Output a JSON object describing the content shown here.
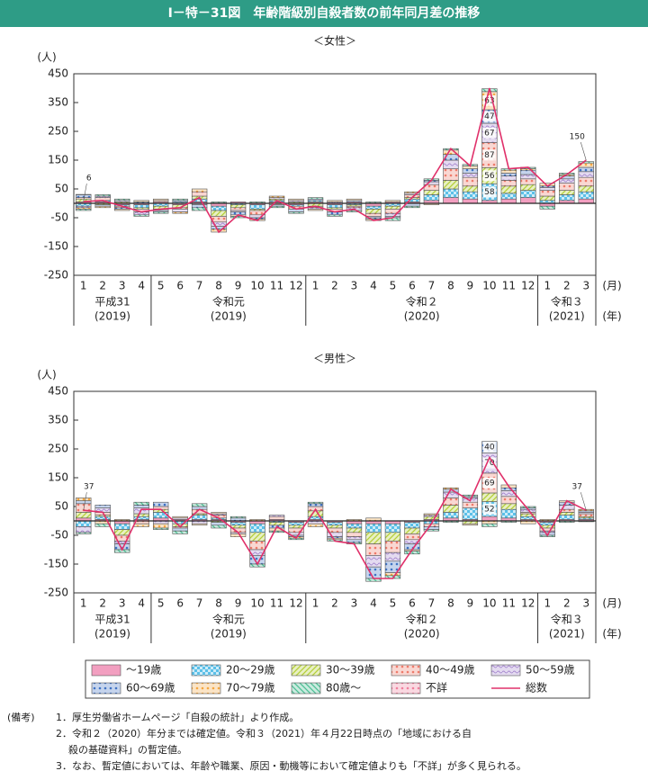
{
  "header": {
    "title": "Ⅰ－特－31図　年齢階級別自殺者数の前年同月差の推移"
  },
  "chart_data": [
    {
      "type": "bar",
      "title": "＜女性＞",
      "ylabel": "(人)",
      "x_unit": "(月)",
      "group_unit": "(年)",
      "categories": [
        "1",
        "2",
        "3",
        "4",
        "5",
        "6",
        "7",
        "8",
        "9",
        "10",
        "11",
        "12",
        "1",
        "2",
        "3",
        "4",
        "5",
        "6",
        "7",
        "8",
        "9",
        "10",
        "11",
        "12",
        "1",
        "2",
        "3"
      ],
      "groups": [
        {
          "name": "平成31",
          "year": "(2019)",
          "span": 4
        },
        {
          "name": "令和元",
          "year": "(2019)",
          "span": 8
        },
        {
          "name": "令和２",
          "year": "(2020)",
          "span": 12
        },
        {
          "name": "令和３",
          "year": "(2021)",
          "span": 3
        }
      ],
      "ylim": [
        -250,
        450
      ],
      "yticks": [
        -250,
        -150,
        -50,
        50,
        150,
        250,
        350,
        450
      ],
      "series": [
        {
          "name": "～19歳",
          "color": "#f29fc0",
          "pattern": "solid",
          "values": [
            5,
            5,
            -5,
            -5,
            5,
            -5,
            5,
            -10,
            5,
            -5,
            5,
            -5,
            5,
            -5,
            5,
            -10,
            5,
            5,
            10,
            20,
            15,
            10,
            15,
            20,
            -10,
            10,
            15
          ]
        },
        {
          "name": "20～29歳",
          "color": "#5cc0e8",
          "pattern": "checker",
          "values": [
            -10,
            5,
            -5,
            -10,
            -10,
            5,
            10,
            -15,
            -5,
            -15,
            5,
            -5,
            5,
            -10,
            -5,
            -10,
            -10,
            10,
            20,
            30,
            25,
            58,
            20,
            25,
            10,
            20,
            25
          ],
          "label_points": [
            21
          ]
        },
        {
          "name": "30～39歳",
          "color": "#b5cf3a",
          "pattern": "diag",
          "values": [
            10,
            -5,
            5,
            -5,
            -10,
            -10,
            10,
            -20,
            -10,
            -5,
            5,
            5,
            -10,
            -5,
            -5,
            -15,
            -10,
            5,
            15,
            30,
            20,
            56,
            25,
            20,
            15,
            15,
            20
          ],
          "label_points": [
            21
          ]
        },
        {
          "name": "40～49歳",
          "color": "#ee7a6a",
          "pattern": "dots",
          "values": [
            5,
            10,
            -5,
            -10,
            5,
            -5,
            15,
            -20,
            -10,
            -15,
            -5,
            -10,
            -5,
            -10,
            -5,
            -10,
            -15,
            10,
            20,
            40,
            30,
            87,
            20,
            20,
            20,
            25,
            30
          ],
          "label_points": [
            21
          ]
        },
        {
          "name": "50～59歳",
          "color": "#a88ad0",
          "pattern": "wave",
          "values": [
            -5,
            5,
            5,
            -10,
            -5,
            -10,
            -5,
            -15,
            -5,
            -10,
            5,
            5,
            -5,
            5,
            -10,
            -5,
            -10,
            5,
            10,
            30,
            15,
            67,
            15,
            15,
            10,
            15,
            20
          ],
          "label_points": [
            21
          ]
        },
        {
          "name": "60～69歳",
          "color": "#3f72c4",
          "pattern": "dots",
          "values": [
            10,
            -5,
            -5,
            5,
            -5,
            5,
            -10,
            -10,
            -10,
            -5,
            -5,
            -10,
            5,
            -10,
            5,
            -5,
            -5,
            -10,
            5,
            20,
            15,
            47,
            10,
            15,
            5,
            10,
            15
          ],
          "label_points": [
            21
          ]
        },
        {
          "name": "70～79歳",
          "color": "#f4a640",
          "pattern": "dots",
          "values": [
            -5,
            -5,
            -5,
            5,
            5,
            -5,
            10,
            -10,
            -5,
            -5,
            5,
            5,
            -5,
            5,
            5,
            -5,
            5,
            5,
            -5,
            15,
            10,
            63,
            10,
            5,
            10,
            5,
            15
          ],
          "label_points": [
            21
          ]
        },
        {
          "name": "80歳～",
          "color": "#4fbf95",
          "pattern": "diag2",
          "values": [
            -5,
            5,
            5,
            -5,
            -5,
            5,
            -10,
            5,
            -5,
            5,
            -5,
            -5,
            5,
            -5,
            -5,
            5,
            -10,
            -5,
            5,
            5,
            5,
            10,
            5,
            5,
            -10,
            5,
            5
          ]
        },
        {
          "name": "不詳",
          "color": "#ef7f9c",
          "pattern": "dots",
          "values": [
            1,
            0,
            0,
            0,
            0,
            0,
            0,
            0,
            0,
            0,
            0,
            0,
            0,
            0,
            0,
            0,
            0,
            0,
            0,
            0,
            0,
            0,
            0,
            0,
            0,
            0,
            0
          ]
        },
        {
          "name": "総数",
          "color": "#e0306a",
          "type": "line",
          "values": [
            6,
            10,
            -10,
            -30,
            -20,
            -15,
            20,
            -100,
            -40,
            -60,
            10,
            -20,
            -10,
            -30,
            -20,
            -60,
            -50,
            20,
            80,
            190,
            130,
            400,
            120,
            125,
            60,
            100,
            150
          ],
          "label_points": [
            0,
            26
          ]
        }
      ]
    },
    {
      "type": "bar",
      "title": "＜男性＞",
      "ylabel": "(人)",
      "x_unit": "(月)",
      "group_unit": "(年)",
      "categories": [
        "1",
        "2",
        "3",
        "4",
        "5",
        "6",
        "7",
        "8",
        "9",
        "10",
        "11",
        "12",
        "1",
        "2",
        "3",
        "4",
        "5",
        "6",
        "7",
        "8",
        "9",
        "10",
        "11",
        "12",
        "1",
        "2",
        "3"
      ],
      "groups": [
        {
          "name": "平成31",
          "year": "(2019)",
          "span": 4
        },
        {
          "name": "令和元",
          "year": "(2019)",
          "span": 8
        },
        {
          "name": "令和２",
          "year": "(2020)",
          "span": 12
        },
        {
          "name": "令和３",
          "year": "(2021)",
          "span": 3
        }
      ],
      "ylim": [
        -250,
        450
      ],
      "yticks": [
        -250,
        -150,
        -50,
        50,
        150,
        250,
        350,
        450
      ],
      "series": [
        {
          "color": "#f29fc0",
          "pattern": "solid",
          "values": [
            10,
            5,
            -10,
            5,
            10,
            5,
            5,
            5,
            -5,
            -10,
            5,
            -5,
            5,
            -5,
            -10,
            -10,
            -10,
            -5,
            5,
            10,
            5,
            15,
            10,
            5,
            -5,
            5,
            5
          ]
        },
        {
          "color": "#5cc0e8",
          "pattern": "checker",
          "values": [
            -20,
            10,
            -20,
            10,
            20,
            -10,
            15,
            5,
            -10,
            -30,
            -5,
            -10,
            10,
            -10,
            -15,
            -30,
            -30,
            -20,
            -10,
            20,
            40,
            52,
            30,
            10,
            -10,
            15,
            5
          ],
          "label_points": [
            21
          ]
        },
        {
          "color": "#b5cf3a",
          "pattern": "diag",
          "values": [
            20,
            5,
            -20,
            10,
            10,
            -10,
            5,
            -5,
            -10,
            -30,
            -10,
            -10,
            20,
            -10,
            -15,
            -40,
            -30,
            -20,
            10,
            25,
            -10,
            30,
            20,
            10,
            -10,
            10,
            5
          ]
        },
        {
          "color": "#ee7a6a",
          "pattern": "dots",
          "values": [
            30,
            10,
            -20,
            -10,
            10,
            -5,
            15,
            10,
            -15,
            -30,
            10,
            -15,
            15,
            -15,
            -15,
            -40,
            -40,
            -20,
            -10,
            25,
            20,
            69,
            25,
            5,
            -10,
            10,
            10
          ],
          "label_points": [
            21
          ]
        },
        {
          "color": "#a88ad0",
          "pattern": "wave",
          "values": [
            -20,
            15,
            -10,
            20,
            -10,
            5,
            -10,
            5,
            -5,
            -20,
            5,
            -10,
            -10,
            -15,
            -10,
            -40,
            -30,
            -15,
            5,
            20,
            15,
            70,
            20,
            10,
            -5,
            15,
            5
          ],
          "label_points": [
            21
          ]
        },
        {
          "color": "#3f72c4",
          "pattern": "dots",
          "values": [
            10,
            10,
            -20,
            10,
            15,
            -10,
            10,
            -10,
            10,
            -30,
            -10,
            -5,
            10,
            -5,
            -10,
            -40,
            -40,
            -20,
            -10,
            10,
            5,
            40,
            10,
            5,
            -10,
            10,
            5
          ],
          "label_points": [
            21
          ]
        },
        {
          "color": "#f4a640",
          "pattern": "dots",
          "values": [
            10,
            -10,
            5,
            -10,
            -15,
            5,
            -5,
            5,
            -10,
            5,
            -10,
            -5,
            -10,
            -5,
            5,
            10,
            -10,
            -5,
            5,
            5,
            -5,
            -10,
            10,
            -10,
            5,
            5,
            5
          ]
        },
        {
          "color": "#4fbf95",
          "pattern": "diag2",
          "values": [
            -5,
            -10,
            -10,
            10,
            -5,
            -10,
            10,
            -10,
            5,
            -10,
            -5,
            -5,
            5,
            -5,
            -5,
            -10,
            -10,
            -10,
            -5,
            -5,
            5,
            -10,
            -5,
            5,
            -5,
            -5,
            -3
          ]
        },
        {
          "color": "#ef7f9c",
          "pattern": "dots",
          "values": [
            0,
            0,
            0,
            0,
            0,
            0,
            0,
            0,
            0,
            0,
            0,
            0,
            0,
            0,
            0,
            0,
            0,
            0,
            0,
            0,
            0,
            0,
            0,
            0,
            0,
            0,
            0
          ]
        },
        {
          "color": "#e0306a",
          "type": "line",
          "values": [
            37,
            30,
            -100,
            40,
            40,
            -20,
            40,
            10,
            -40,
            -150,
            -20,
            -60,
            40,
            -70,
            -80,
            -200,
            -200,
            -100,
            -10,
            110,
            70,
            220,
            120,
            40,
            -50,
            70,
            37
          ],
          "label_points": [
            0,
            26
          ]
        }
      ]
    }
  ],
  "notes": {
    "label": "(備考)",
    "lines": [
      "1．厚生労働省ホームページ「自殺の統計」より作成。",
      "2．令和２（2020）年分までは確定値。令和３（2021）年４月22日時点の「地域における自",
      "殺の基礎資料」の暫定値。",
      "3．なお、暫定値においては、年齢や職業、原因・動機等において確定値よりも「不詳」が多く見られる。"
    ]
  }
}
